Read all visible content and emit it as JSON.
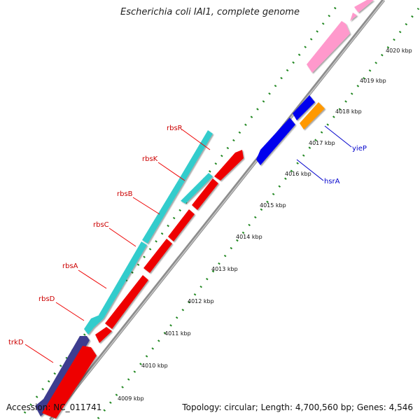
{
  "title": "Escherichia coli IAI1, complete genome",
  "footer": {
    "accession": "Accession: NC_011741",
    "summary": "Topology: circular; Length: 4,700,560 bp; Genes: 4,546"
  },
  "ticks": [
    "4009 kbp",
    "4010 kbp",
    "4011 kbp",
    "4012 kbp",
    "4013 kbp",
    "4014 kbp",
    "4015 kbp",
    "4016 kbp",
    "4017 kbp",
    "4018 kbp",
    "4019 kbp",
    "4020 kbp"
  ],
  "gene_labels": [
    {
      "text": "rbsR",
      "color": "#cc0000"
    },
    {
      "text": "rbsK",
      "color": "#cc0000"
    },
    {
      "text": "rbsB",
      "color": "#cc0000"
    },
    {
      "text": "rbsC",
      "color": "#cc0000"
    },
    {
      "text": "rbsA",
      "color": "#cc0000"
    },
    {
      "text": "rbsD",
      "color": "#cc0000"
    },
    {
      "text": "trkD",
      "color": "#cc0000"
    },
    {
      "text": "yieP",
      "color": "#0000cc"
    },
    {
      "text": "hsrA",
      "color": "#0000cc"
    }
  ],
  "colors": {
    "backbone": "#8c8c8c",
    "cds_red": "#ee0000",
    "cds_cyan": "#33cccc",
    "cds_navy": "#3d3d8f",
    "cds_blue": "#0000ee",
    "cds_orange": "#ff9900",
    "cds_pink": "#ff99cc",
    "gc_dots": "#228822"
  }
}
